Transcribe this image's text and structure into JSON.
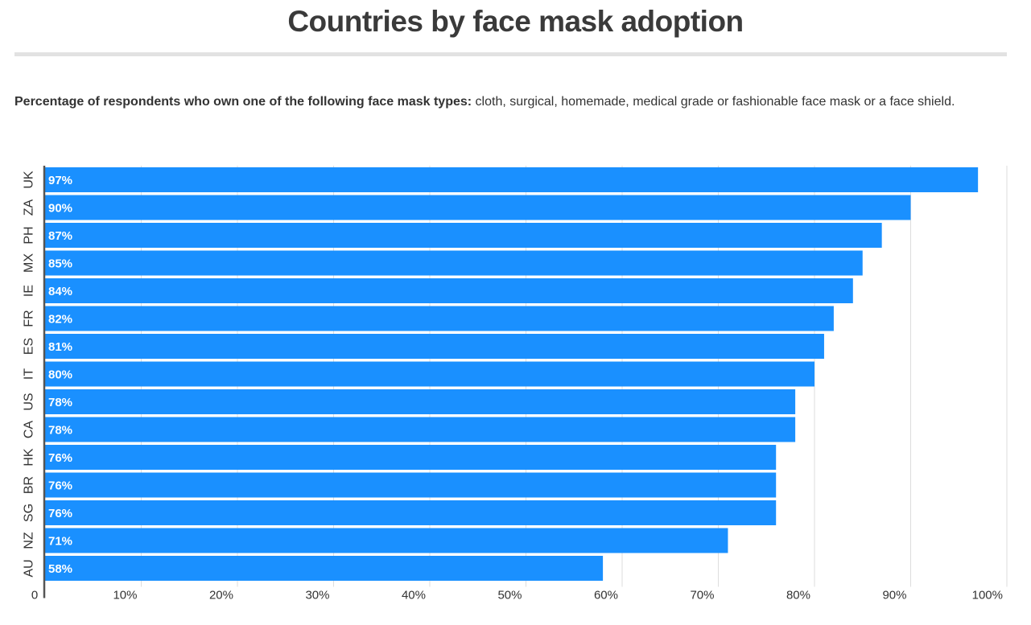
{
  "header": {
    "title": "Countries by face mask adoption",
    "subtitle_bold": "Percentage of respondents who own one of the following face mask types:",
    "subtitle_rest": " cloth, surgical, homemade, medical grade or fashionable face mask or a face shield."
  },
  "colors": {
    "bar": "#1a90ff",
    "grid": "#dddddd",
    "axis": "#555555"
  },
  "chart_data": {
    "type": "bar",
    "orientation": "horizontal",
    "title": "Countries by face mask adoption",
    "categories": [
      "UK",
      "ZA",
      "PH",
      "MX",
      "IE",
      "FR",
      "ES",
      "IT",
      "US",
      "CA",
      "HK",
      "BR",
      "SG",
      "NZ",
      "AU"
    ],
    "values": [
      97,
      90,
      87,
      85,
      84,
      82,
      81,
      80,
      78,
      78,
      76,
      76,
      76,
      71,
      58
    ],
    "value_labels": [
      "97%",
      "90%",
      "87%",
      "85%",
      "84%",
      "82%",
      "81%",
      "80%",
      "78%",
      "78%",
      "76%",
      "76%",
      "76%",
      "71%",
      "58%"
    ],
    "xlim": [
      0,
      100
    ],
    "xticks": [
      0,
      10,
      20,
      30,
      40,
      50,
      60,
      70,
      80,
      90,
      100
    ],
    "xtick_labels": [
      "0",
      "10%",
      "20%",
      "30%",
      "40%",
      "50%",
      "60%",
      "70%",
      "80%",
      "90%",
      "100%"
    ],
    "grid": true,
    "legend": "none"
  }
}
